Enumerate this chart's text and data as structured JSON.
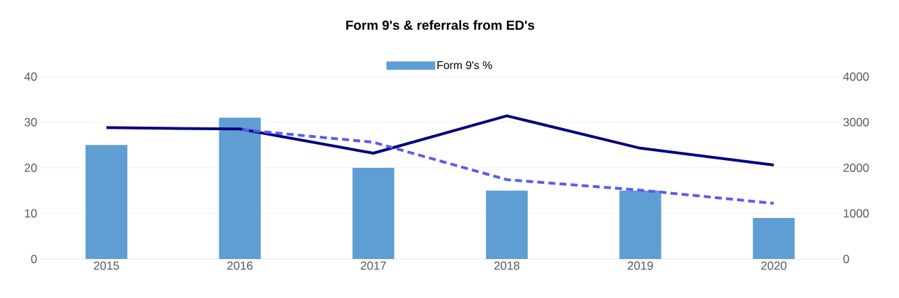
{
  "chart_data": {
    "type": "bar",
    "title": "Form 9's & referrals from ED's",
    "categories": [
      "2015",
      "2016",
      "2017",
      "2018",
      "2019",
      "2020"
    ],
    "series": [
      {
        "name": "Form 9's %",
        "color": "#5f9ed3",
        "values": [
          25,
          31,
          20,
          15,
          15,
          9
        ]
      },
      {
        "type": "line",
        "axis": "y2",
        "color": "#000080",
        "line_style": "solid",
        "values": [
          2880,
          2850,
          2320,
          3140,
          2430,
          2060
        ]
      },
      {
        "type": "line",
        "axis": "y2",
        "color": "#5b5bf0",
        "line_style": "dashed",
        "values": [
          null,
          2840,
          2560,
          1740,
          1510,
          1220
        ]
      }
    ],
    "ylim": [
      0,
      40
    ],
    "yticks": [
      0,
      10,
      20,
      30,
      40
    ],
    "y2lim": [
      0,
      4000
    ],
    "y2ticks": [
      0,
      1000,
      2000,
      3000,
      4000
    ],
    "grid": "y",
    "legend": "top"
  }
}
